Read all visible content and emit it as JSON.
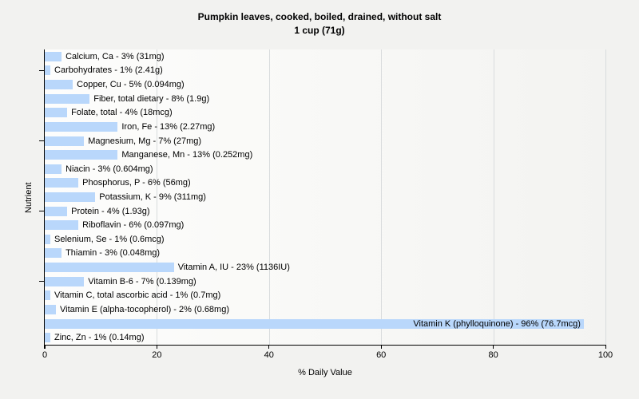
{
  "title": {
    "line1": "Pumpkin leaves, cooked, boiled, drained, without salt",
    "line2": "1 cup (71g)"
  },
  "chart_data": {
    "type": "bar",
    "orientation": "horizontal",
    "title": "Pumpkin leaves, cooked, boiled, drained, without salt",
    "subtitle": "1 cup (71g)",
    "xlabel": "% Daily Value",
    "ylabel": "Nutrient",
    "xlim": [
      0,
      100
    ],
    "xticks": [
      0,
      20,
      40,
      60,
      80,
      100
    ],
    "grid": "vertical",
    "gridline_color": "#d9dcdd",
    "bar_color": "#b9d7fb",
    "ytick_row_indices": [
      1,
      6,
      11,
      16
    ],
    "label_format": "{nutrient} - {percent}% ({amount})",
    "items": [
      {
        "nutrient": "Calcium, Ca",
        "percent": 3,
        "amount": "31mg",
        "label": "Calcium, Ca - 3% (31mg)"
      },
      {
        "nutrient": "Carbohydrates",
        "percent": 1,
        "amount": "2.41g",
        "label": "Carbohydrates - 1% (2.41g)"
      },
      {
        "nutrient": "Copper, Cu",
        "percent": 5,
        "amount": "0.094mg",
        "label": "Copper, Cu - 5% (0.094mg)"
      },
      {
        "nutrient": "Fiber, total dietary",
        "percent": 8,
        "amount": "1.9g",
        "label": "Fiber, total dietary - 8% (1.9g)"
      },
      {
        "nutrient": "Folate, total",
        "percent": 4,
        "amount": "18mcg",
        "label": "Folate, total - 4% (18mcg)"
      },
      {
        "nutrient": "Iron, Fe",
        "percent": 13,
        "amount": "2.27mg",
        "label": "Iron, Fe - 13% (2.27mg)"
      },
      {
        "nutrient": "Magnesium, Mg",
        "percent": 7,
        "amount": "27mg",
        "label": "Magnesium, Mg - 7% (27mg)"
      },
      {
        "nutrient": "Manganese, Mn",
        "percent": 13,
        "amount": "0.252mg",
        "label": "Manganese, Mn - 13% (0.252mg)"
      },
      {
        "nutrient": "Niacin",
        "percent": 3,
        "amount": "0.604mg",
        "label": "Niacin - 3% (0.604mg)"
      },
      {
        "nutrient": "Phosphorus, P",
        "percent": 6,
        "amount": "56mg",
        "label": "Phosphorus, P - 6% (56mg)"
      },
      {
        "nutrient": "Potassium, K",
        "percent": 9,
        "amount": "311mg",
        "label": "Potassium, K - 9% (311mg)"
      },
      {
        "nutrient": "Protein",
        "percent": 4,
        "amount": "1.93g",
        "label": "Protein - 4% (1.93g)"
      },
      {
        "nutrient": "Riboflavin",
        "percent": 6,
        "amount": "0.097mg",
        "label": "Riboflavin - 6% (0.097mg)"
      },
      {
        "nutrient": "Selenium, Se",
        "percent": 1,
        "amount": "0.6mcg",
        "label": "Selenium, Se - 1% (0.6mcg)"
      },
      {
        "nutrient": "Thiamin",
        "percent": 3,
        "amount": "0.048mg",
        "label": "Thiamin - 3% (0.048mg)"
      },
      {
        "nutrient": "Vitamin A, IU",
        "percent": 23,
        "amount": "1136IU",
        "label": "Vitamin A, IU - 23% (1136IU)"
      },
      {
        "nutrient": "Vitamin B-6",
        "percent": 7,
        "amount": "0.139mg",
        "label": "Vitamin B-6 - 7% (0.139mg)"
      },
      {
        "nutrient": "Vitamin C, total ascorbic acid",
        "percent": 1,
        "amount": "0.7mg",
        "label": "Vitamin C, total ascorbic acid - 1% (0.7mg)"
      },
      {
        "nutrient": "Vitamin E (alpha-tocopherol)",
        "percent": 2,
        "amount": "0.68mg",
        "label": "Vitamin E (alpha-tocopherol) - 2% (0.68mg)"
      },
      {
        "nutrient": "Vitamin K (phylloquinone)",
        "percent": 96,
        "amount": "76.7mcg",
        "label": "Vitamin K (phylloquinone) - 96% (76.7mcg)"
      },
      {
        "nutrient": "Zinc, Zn",
        "percent": 1,
        "amount": "0.14mg",
        "label": "Zinc, Zn - 1% (0.14mg)"
      }
    ]
  }
}
